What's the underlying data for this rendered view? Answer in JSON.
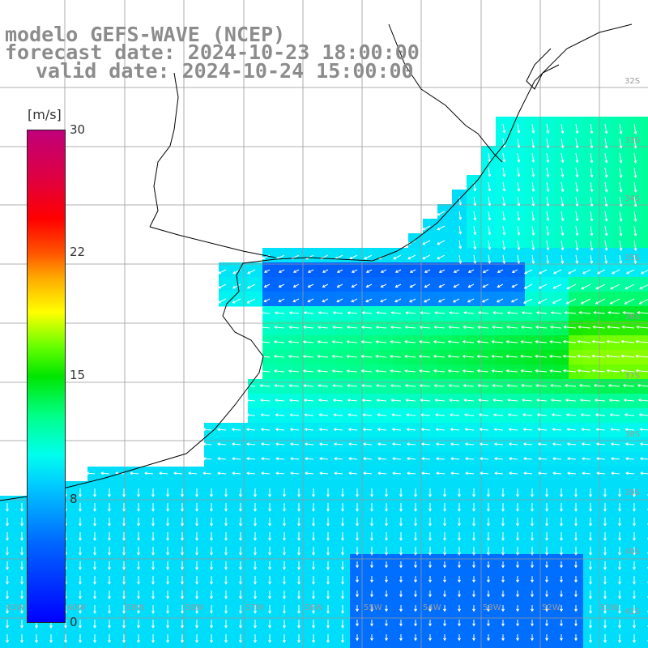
{
  "title": {
    "model": "modelo GEFS-WAVE (NCEP)",
    "forecast": "forecast date: 2024-10-23 18:00:00",
    "valid": "valid date: 2024-10-24 15:00:00"
  },
  "colorbar": {
    "unit": "[m/s]",
    "ticks": [
      "30",
      "22",
      "15",
      "8",
      "0"
    ],
    "range": [
      0,
      30
    ],
    "colors": [
      "#0000ff",
      "#00ccff",
      "#00ff88",
      "#00e600",
      "#ffff00",
      "#ff0000",
      "#c0007a"
    ]
  },
  "latitude_labels": [
    "32S",
    "33S",
    "34S",
    "35S",
    "36S",
    "37S",
    "38S",
    "39S",
    "40S",
    "41S"
  ],
  "longitude_labels": [
    "61W",
    "60W",
    "59W",
    "58W",
    "57W",
    "56W",
    "55W",
    "54W",
    "53W",
    "52W",
    "51W"
  ],
  "map_colors": {
    "land": "#ffffff",
    "coast": "#000000",
    "grid": "#999999",
    "arrow": "#ffffff"
  }
}
